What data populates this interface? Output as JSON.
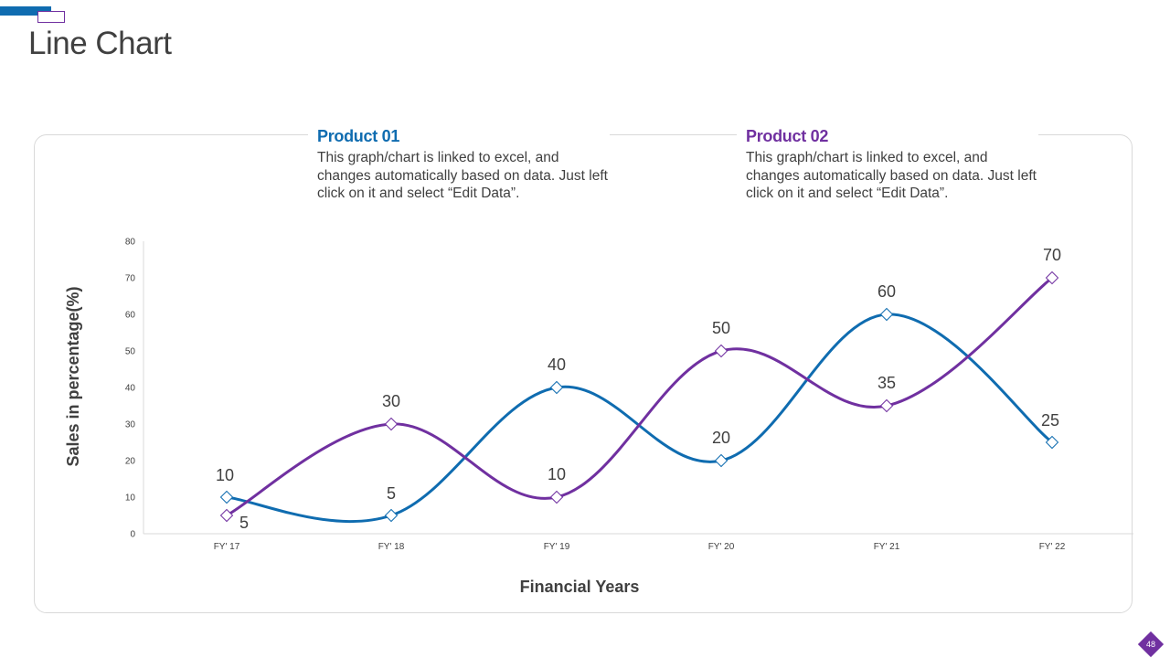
{
  "slide": {
    "title": "Line Chart",
    "page_number": "48"
  },
  "legend": {
    "product1": {
      "title": "Product 01",
      "description": "This graph/chart is linked to excel, and changes automatically based on data. Just left click on it and select “Edit Data”."
    },
    "product2": {
      "title": "Product 02",
      "description": "This graph/chart is linked to excel, and changes automatically based on data. Just left click on it and select “Edit Data”."
    }
  },
  "colors": {
    "product1": "#0F6CB0",
    "product2": "#7030A0",
    "axis": "#D9D9D9",
    "text": "#404040"
  },
  "chart_data": {
    "type": "line",
    "title": "",
    "xlabel": "Financial Years",
    "ylabel": "Sales in percentage(%)",
    "categories": [
      "FY' 17",
      "FY' 18",
      "FY' 19",
      "FY' 20",
      "FY' 21",
      "FY' 22"
    ],
    "ylim": [
      0,
      80
    ],
    "yticks": [
      0,
      10,
      20,
      30,
      40,
      50,
      60,
      70,
      80
    ],
    "grid": false,
    "series": [
      {
        "name": "Product 01",
        "values": [
          10,
          5,
          40,
          20,
          60,
          25
        ]
      },
      {
        "name": "Product 02",
        "values": [
          5,
          30,
          10,
          50,
          35,
          70
        ]
      }
    ]
  }
}
